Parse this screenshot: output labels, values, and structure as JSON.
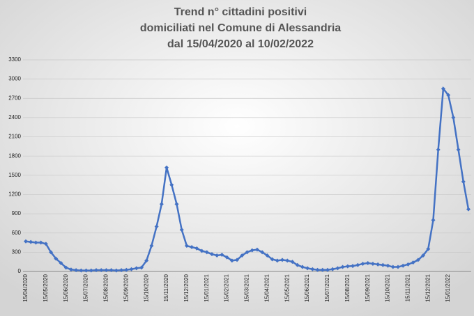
{
  "chart_data": {
    "type": "line",
    "title": [
      "Trend n° cittadini positivi",
      "domiciliati nel Comune di Alessandria",
      "dal 15/04/2020 al 10/02/2022"
    ],
    "categories": [
      "15/04/2020",
      null,
      null,
      null,
      "15/05/2020",
      null,
      null,
      null,
      "15/06/2020",
      null,
      null,
      null,
      "15/07/2020",
      null,
      null,
      null,
      "15/08/2020",
      null,
      null,
      null,
      "15/09/2020",
      null,
      null,
      null,
      "15/10/2020",
      null,
      null,
      null,
      "15/11/2020",
      null,
      null,
      null,
      "15/12/2020",
      null,
      null,
      null,
      "15/01/2021",
      null,
      null,
      null,
      "15/02/2021",
      null,
      null,
      null,
      "15/03/2021",
      null,
      null,
      null,
      "15/04/2021",
      null,
      null,
      null,
      "15/05/2021",
      null,
      null,
      null,
      "15/06/2021",
      null,
      null,
      null,
      "15/07/2021",
      null,
      null,
      null,
      "15/08/2021",
      null,
      null,
      null,
      "15/09/2021",
      null,
      null,
      null,
      "15/10/2021",
      null,
      null,
      null,
      "15/11/2021",
      null,
      null,
      null,
      "15/12/2021",
      null,
      null,
      null,
      "15/01/2022",
      null,
      null,
      null,
      null
    ],
    "series": [
      {
        "color": "#4472c4",
        "values": [
          470,
          460,
          450,
          450,
          430,
          300,
          200,
          130,
          60,
          30,
          20,
          15,
          15,
          15,
          20,
          20,
          20,
          20,
          15,
          20,
          25,
          35,
          50,
          60,
          170,
          400,
          700,
          1050,
          1620,
          1350,
          1050,
          650,
          400,
          380,
          360,
          320,
          300,
          270,
          250,
          260,
          220,
          170,
          180,
          250,
          300,
          330,
          340,
          300,
          250,
          190,
          170,
          180,
          170,
          150,
          100,
          70,
          50,
          35,
          25,
          25,
          25,
          35,
          50,
          70,
          80,
          85,
          100,
          120,
          130,
          120,
          110,
          100,
          90,
          70,
          70,
          90,
          110,
          140,
          180,
          250,
          350,
          800,
          1900,
          2850,
          2750,
          2400,
          1900,
          1400,
          970
        ]
      }
    ],
    "ylim": [
      0,
      3300
    ],
    "yticks": [
      0,
      300,
      600,
      900,
      1200,
      1500,
      1800,
      2100,
      2400,
      2700,
      3000,
      3300
    ],
    "grid": true
  }
}
